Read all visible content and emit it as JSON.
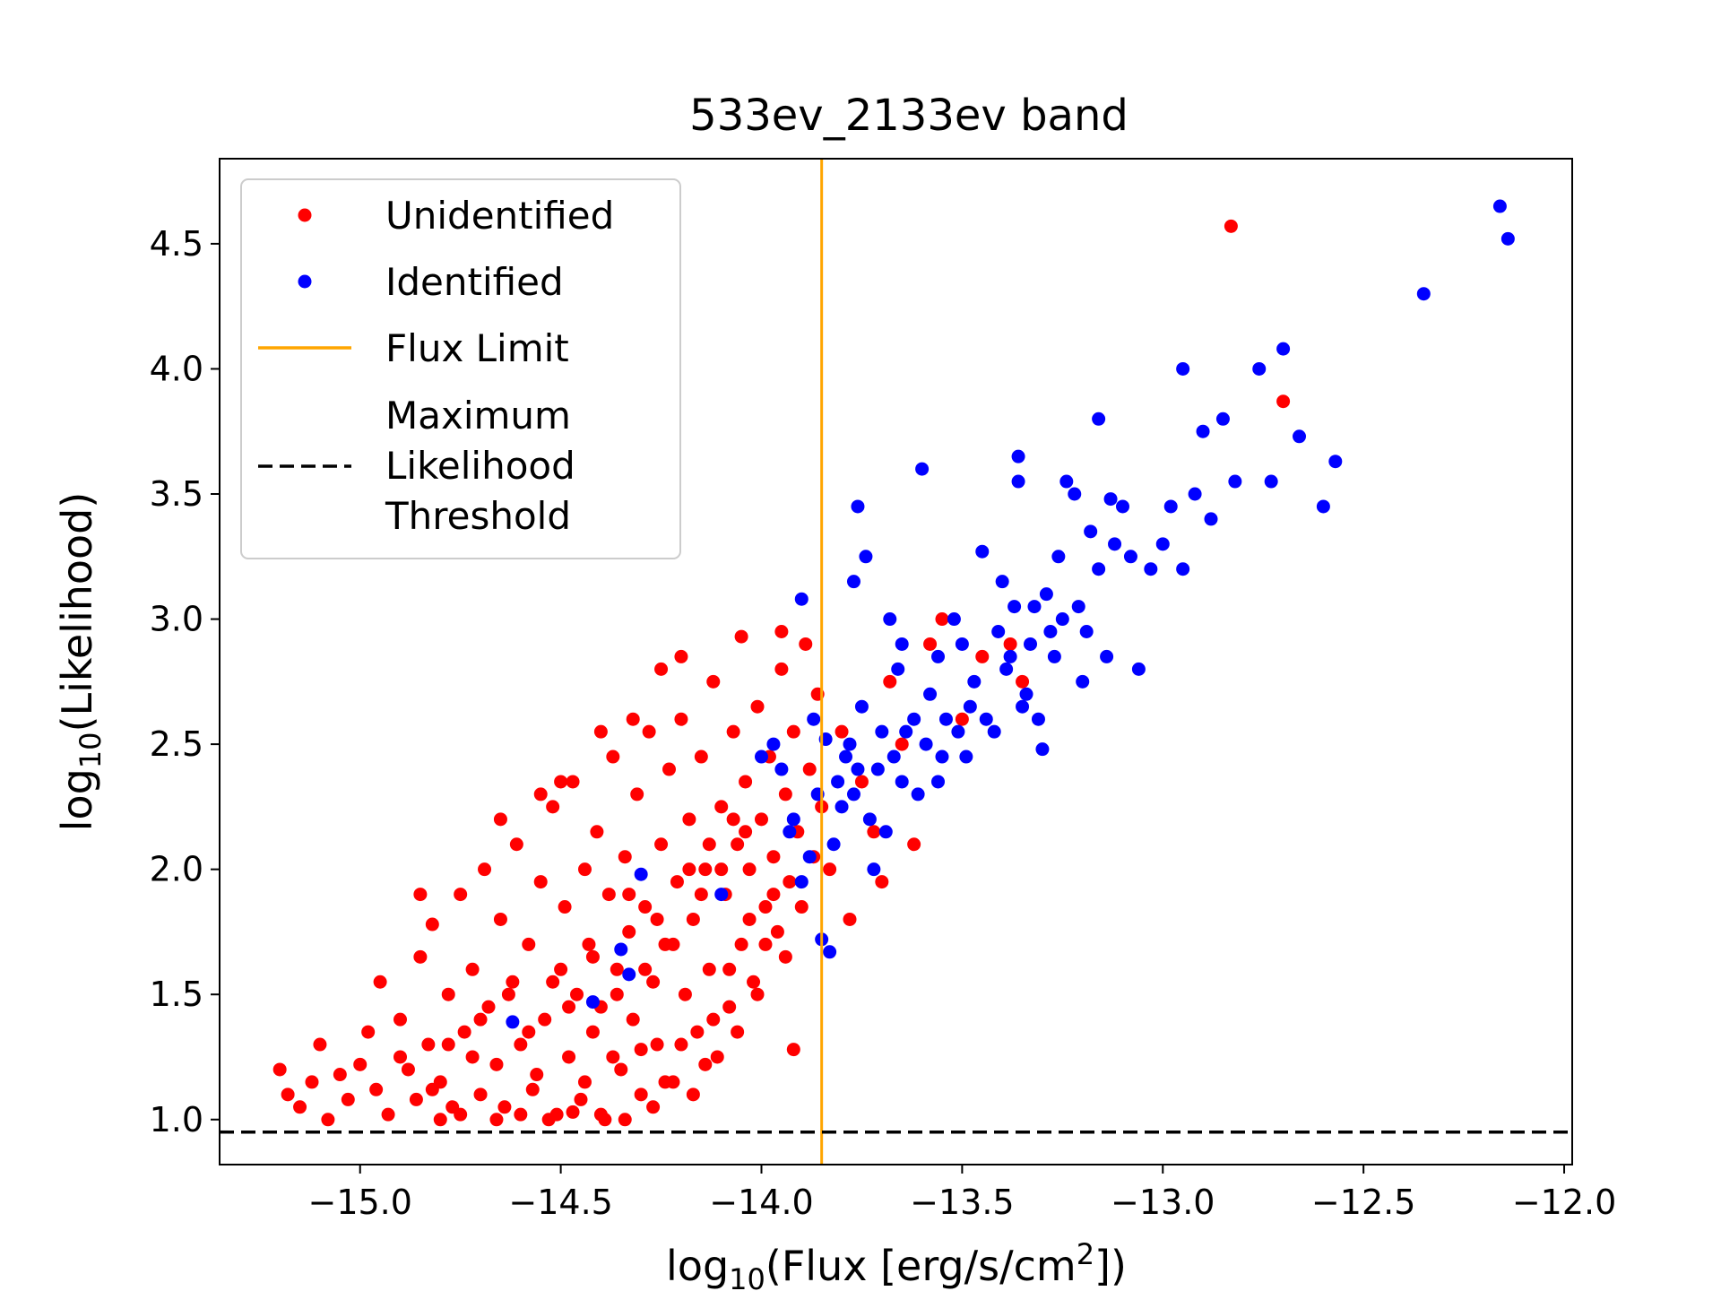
{
  "chart_data": {
    "type": "scatter",
    "title": "533ev_2133ev band",
    "xlabel": {
      "prefix": "log",
      "sub": "10",
      "main": "(Flux [erg/s/cm",
      "sup": "2",
      "suffix": "])"
    },
    "ylabel": {
      "prefix": "log",
      "sub": "10",
      "main": "(Likelihood)"
    },
    "xlim": [
      -15.35,
      -11.98
    ],
    "ylim": [
      0.82,
      4.84
    ],
    "xticks": [
      -15.0,
      -14.5,
      -14.0,
      -13.5,
      -13.0,
      -12.5,
      -12.0
    ],
    "xtick_labels": [
      "−15.0",
      "−14.5",
      "−14.0",
      "−13.5",
      "−13.0",
      "−12.5",
      "−12.0"
    ],
    "yticks": [
      1.0,
      1.5,
      2.0,
      2.5,
      3.0,
      3.5,
      4.0,
      4.5
    ],
    "ytick_labels": [
      "1.0",
      "1.5",
      "2.0",
      "2.5",
      "3.0",
      "3.5",
      "4.0",
      "4.5"
    ],
    "grid": false,
    "legend_position": "top-left",
    "flux_limit": -13.85,
    "likelihood_threshold": 0.95,
    "colors": {
      "unidentified": "#ff0000",
      "identified": "#0000ff",
      "flux_limit": "#ffa500",
      "threshold": "#000000"
    },
    "legend": [
      {
        "label": "Unidentified",
        "kind": "point",
        "color": "#ff0000"
      },
      {
        "label": "Identified",
        "kind": "point",
        "color": "#0000ff"
      },
      {
        "label": "Flux Limit",
        "kind": "line",
        "color": "#ffa500"
      },
      {
        "label": "Maximum\nLikelihood\nThreshold",
        "kind": "dashed",
        "color": "#000000"
      }
    ],
    "series": [
      {
        "name": "Unidentified",
        "color": "#ff0000",
        "points": [
          [
            -15.2,
            1.2
          ],
          [
            -15.18,
            1.1
          ],
          [
            -15.15,
            1.05
          ],
          [
            -15.12,
            1.15
          ],
          [
            -15.1,
            1.3
          ],
          [
            -15.08,
            1.0
          ],
          [
            -15.05,
            1.18
          ],
          [
            -15.03,
            1.08
          ],
          [
            -15.0,
            1.22
          ],
          [
            -14.98,
            1.35
          ],
          [
            -14.96,
            1.12
          ],
          [
            -14.95,
            1.55
          ],
          [
            -14.93,
            1.02
          ],
          [
            -14.9,
            1.4
          ],
          [
            -14.88,
            1.2
          ],
          [
            -14.86,
            1.08
          ],
          [
            -14.85,
            1.65
          ],
          [
            -14.83,
            1.3
          ],
          [
            -14.82,
            1.78
          ],
          [
            -14.8,
            1.15
          ],
          [
            -14.78,
            1.5
          ],
          [
            -14.77,
            1.05
          ],
          [
            -14.75,
            1.9
          ],
          [
            -14.74,
            1.35
          ],
          [
            -14.72,
            1.6
          ],
          [
            -14.7,
            1.1
          ],
          [
            -14.69,
            2.0
          ],
          [
            -14.68,
            1.45
          ],
          [
            -14.66,
            1.22
          ],
          [
            -14.65,
            1.8
          ],
          [
            -14.64,
            1.05
          ],
          [
            -14.62,
            1.55
          ],
          [
            -14.61,
            2.1
          ],
          [
            -14.6,
            1.3
          ],
          [
            -14.58,
            1.7
          ],
          [
            -14.57,
            1.12
          ],
          [
            -14.55,
            1.95
          ],
          [
            -14.54,
            1.4
          ],
          [
            -14.52,
            2.25
          ],
          [
            -14.51,
            1.02
          ],
          [
            -14.5,
            1.6
          ],
          [
            -14.49,
            1.85
          ],
          [
            -14.48,
            1.25
          ],
          [
            -14.47,
            2.35
          ],
          [
            -14.46,
            1.5
          ],
          [
            -14.45,
            1.08
          ],
          [
            -14.44,
            2.0
          ],
          [
            -14.43,
            1.7
          ],
          [
            -14.42,
            1.35
          ],
          [
            -14.41,
            2.15
          ],
          [
            -14.4,
            1.45
          ],
          [
            -14.39,
            1.0
          ],
          [
            -14.38,
            1.9
          ],
          [
            -14.37,
            2.45
          ],
          [
            -14.36,
            1.6
          ],
          [
            -14.35,
            1.2
          ],
          [
            -14.34,
            2.05
          ],
          [
            -14.33,
            1.75
          ],
          [
            -14.32,
            1.4
          ],
          [
            -14.31,
            2.3
          ],
          [
            -14.3,
            1.1
          ],
          [
            -14.29,
            1.85
          ],
          [
            -14.28,
            2.55
          ],
          [
            -14.27,
            1.55
          ],
          [
            -14.26,
            1.3
          ],
          [
            -14.25,
            2.1
          ],
          [
            -14.24,
            1.7
          ],
          [
            -14.23,
            2.4
          ],
          [
            -14.22,
            1.15
          ],
          [
            -14.21,
            1.95
          ],
          [
            -14.2,
            2.6
          ],
          [
            -14.19,
            1.5
          ],
          [
            -14.18,
            2.2
          ],
          [
            -14.17,
            1.8
          ],
          [
            -14.16,
            1.35
          ],
          [
            -14.15,
            2.45
          ],
          [
            -14.14,
            2.0
          ],
          [
            -14.13,
            1.6
          ],
          [
            -14.12,
            2.75
          ],
          [
            -14.11,
            1.25
          ],
          [
            -14.1,
            2.25
          ],
          [
            -14.09,
            1.9
          ],
          [
            -14.08,
            1.45
          ],
          [
            -14.07,
            2.55
          ],
          [
            -14.06,
            2.1
          ],
          [
            -14.05,
            1.7
          ],
          [
            -14.04,
            2.35
          ],
          [
            -14.03,
            2.0
          ],
          [
            -14.02,
            1.55
          ],
          [
            -14.01,
            2.65
          ],
          [
            -14.0,
            2.2
          ],
          [
            -13.99,
            1.85
          ],
          [
            -13.98,
            2.45
          ],
          [
            -13.97,
            2.05
          ],
          [
            -13.96,
            1.75
          ],
          [
            -13.95,
            2.8
          ],
          [
            -13.94,
            2.3
          ],
          [
            -13.93,
            1.95
          ],
          [
            -13.92,
            2.55
          ],
          [
            -13.91,
            2.15
          ],
          [
            -13.9,
            1.85
          ],
          [
            -13.89,
            2.9
          ],
          [
            -13.88,
            2.4
          ],
          [
            -13.87,
            2.05
          ],
          [
            -13.86,
            2.7
          ],
          [
            -13.85,
            2.25
          ],
          [
            -13.83,
            2.0
          ],
          [
            -13.8,
            2.55
          ],
          [
            -13.78,
            1.8
          ],
          [
            -13.75,
            2.35
          ],
          [
            -13.72,
            2.15
          ],
          [
            -13.7,
            1.95
          ],
          [
            -13.68,
            2.75
          ],
          [
            -13.65,
            2.5
          ],
          [
            -13.62,
            2.1
          ],
          [
            -13.58,
            2.9
          ],
          [
            -13.55,
            3.0
          ],
          [
            -13.5,
            2.6
          ],
          [
            -13.45,
            2.85
          ],
          [
            -13.38,
            2.9
          ],
          [
            -13.35,
            2.75
          ],
          [
            -14.2,
            2.85
          ],
          [
            -14.25,
            2.8
          ],
          [
            -14.32,
            2.6
          ],
          [
            -14.4,
            2.55
          ],
          [
            -14.5,
            2.35
          ],
          [
            -14.55,
            2.3
          ],
          [
            -14.65,
            2.2
          ],
          [
            -14.85,
            1.9
          ],
          [
            -13.95,
            2.95
          ],
          [
            -14.05,
            2.93
          ],
          [
            -13.92,
            1.28
          ],
          [
            -12.83,
            4.57
          ],
          [
            -12.7,
            3.87
          ],
          [
            -14.8,
            1.0
          ],
          [
            -14.75,
            1.02
          ],
          [
            -14.72,
            1.25
          ],
          [
            -14.66,
            1.0
          ],
          [
            -14.6,
            1.02
          ],
          [
            -14.56,
            1.18
          ],
          [
            -14.53,
            1.0
          ],
          [
            -14.47,
            1.03
          ],
          [
            -14.44,
            1.15
          ],
          [
            -14.4,
            1.02
          ],
          [
            -14.37,
            1.25
          ],
          [
            -14.34,
            1.0
          ],
          [
            -14.3,
            1.28
          ],
          [
            -14.27,
            1.05
          ],
          [
            -14.24,
            1.15
          ],
          [
            -14.2,
            1.3
          ],
          [
            -14.17,
            1.1
          ],
          [
            -14.14,
            1.22
          ],
          [
            -14.12,
            1.4
          ],
          [
            -14.08,
            1.6
          ],
          [
            -14.06,
            1.35
          ],
          [
            -14.03,
            1.8
          ],
          [
            -14.01,
            1.5
          ],
          [
            -13.99,
            1.7
          ],
          [
            -13.97,
            1.9
          ],
          [
            -13.94,
            1.65
          ],
          [
            -14.9,
            1.25
          ],
          [
            -14.82,
            1.12
          ],
          [
            -14.78,
            1.3
          ],
          [
            -14.7,
            1.4
          ],
          [
            -14.63,
            1.5
          ],
          [
            -14.58,
            1.35
          ],
          [
            -14.52,
            1.55
          ],
          [
            -14.48,
            1.45
          ],
          [
            -14.42,
            1.65
          ],
          [
            -14.36,
            1.5
          ],
          [
            -14.33,
            1.9
          ],
          [
            -14.29,
            1.6
          ],
          [
            -14.26,
            1.8
          ],
          [
            -14.22,
            1.7
          ],
          [
            -14.18,
            2.0
          ],
          [
            -14.15,
            1.9
          ],
          [
            -14.13,
            2.1
          ],
          [
            -14.1,
            2.0
          ],
          [
            -14.07,
            2.2
          ],
          [
            -14.04,
            2.15
          ]
        ]
      },
      {
        "name": "Identified",
        "color": "#0000ff",
        "points": [
          [
            -14.62,
            1.39
          ],
          [
            -14.42,
            1.47
          ],
          [
            -14.35,
            1.68
          ],
          [
            -14.33,
            1.58
          ],
          [
            -14.3,
            1.98
          ],
          [
            -14.1,
            1.9
          ],
          [
            -13.92,
            2.2
          ],
          [
            -13.9,
            1.95
          ],
          [
            -13.88,
            2.05
          ],
          [
            -13.86,
            2.3
          ],
          [
            -13.85,
            1.72
          ],
          [
            -13.83,
            1.67
          ],
          [
            -13.82,
            2.1
          ],
          [
            -13.8,
            2.25
          ],
          [
            -13.78,
            2.5
          ],
          [
            -13.76,
            2.4
          ],
          [
            -13.75,
            2.65
          ],
          [
            -13.74,
            3.25
          ],
          [
            -13.72,
            2.0
          ],
          [
            -13.7,
            2.55
          ],
          [
            -13.68,
            3.0
          ],
          [
            -13.66,
            2.8
          ],
          [
            -13.65,
            2.35
          ],
          [
            -13.62,
            2.6
          ],
          [
            -13.6,
            3.6
          ],
          [
            -13.58,
            2.7
          ],
          [
            -13.55,
            2.45
          ],
          [
            -13.52,
            3.0
          ],
          [
            -13.5,
            2.9
          ],
          [
            -13.48,
            2.65
          ],
          [
            -13.45,
            3.27
          ],
          [
            -13.42,
            2.55
          ],
          [
            -13.4,
            3.15
          ],
          [
            -13.38,
            2.85
          ],
          [
            -13.36,
            3.65
          ],
          [
            -13.34,
            2.7
          ],
          [
            -13.32,
            3.05
          ],
          [
            -13.3,
            2.48
          ],
          [
            -13.28,
            2.95
          ],
          [
            -13.26,
            3.25
          ],
          [
            -13.24,
            3.55
          ],
          [
            -13.22,
            3.5
          ],
          [
            -13.2,
            2.75
          ],
          [
            -13.18,
            3.35
          ],
          [
            -13.16,
            3.2
          ],
          [
            -13.14,
            2.85
          ],
          [
            -13.12,
            3.3
          ],
          [
            -13.1,
            3.45
          ],
          [
            -13.08,
            3.25
          ],
          [
            -13.06,
            2.8
          ],
          [
            -13.03,
            3.2
          ],
          [
            -13.0,
            3.3
          ],
          [
            -12.98,
            3.45
          ],
          [
            -12.95,
            3.2
          ],
          [
            -12.92,
            3.5
          ],
          [
            -12.9,
            3.75
          ],
          [
            -12.88,
            3.4
          ],
          [
            -12.85,
            3.8
          ],
          [
            -12.82,
            3.55
          ],
          [
            -12.76,
            4.0
          ],
          [
            -12.73,
            3.55
          ],
          [
            -12.7,
            4.08
          ],
          [
            -12.66,
            3.73
          ],
          [
            -12.6,
            3.45
          ],
          [
            -12.57,
            3.63
          ],
          [
            -12.95,
            4.0
          ],
          [
            -13.16,
            3.8
          ],
          [
            -13.13,
            3.48
          ],
          [
            -13.36,
            3.55
          ],
          [
            -12.35,
            4.3
          ],
          [
            -12.16,
            4.65
          ],
          [
            -12.14,
            4.52
          ],
          [
            -13.9,
            3.08
          ],
          [
            -13.93,
            2.15
          ],
          [
            -13.97,
            2.5
          ],
          [
            -14.0,
            2.45
          ],
          [
            -13.95,
            2.4
          ],
          [
            -13.87,
            2.6
          ],
          [
            -13.84,
            2.52
          ],
          [
            -13.81,
            2.35
          ],
          [
            -13.79,
            2.45
          ],
          [
            -13.77,
            2.3
          ],
          [
            -13.73,
            2.2
          ],
          [
            -13.71,
            2.4
          ],
          [
            -13.69,
            2.15
          ],
          [
            -13.67,
            2.45
          ],
          [
            -13.64,
            2.55
          ],
          [
            -13.61,
            2.3
          ],
          [
            -13.59,
            2.5
          ],
          [
            -13.56,
            2.35
          ],
          [
            -13.54,
            2.6
          ],
          [
            -13.51,
            2.55
          ],
          [
            -13.49,
            2.45
          ],
          [
            -13.47,
            2.75
          ],
          [
            -13.44,
            2.6
          ],
          [
            -13.41,
            2.95
          ],
          [
            -13.39,
            2.8
          ],
          [
            -13.37,
            3.05
          ],
          [
            -13.35,
            2.65
          ],
          [
            -13.33,
            2.9
          ],
          [
            -13.31,
            2.6
          ],
          [
            -13.29,
            3.1
          ],
          [
            -13.27,
            2.85
          ],
          [
            -13.25,
            3.0
          ],
          [
            -13.21,
            3.05
          ],
          [
            -13.19,
            2.95
          ],
          [
            -13.77,
            3.15
          ],
          [
            -13.76,
            3.45
          ],
          [
            -13.65,
            2.9
          ],
          [
            -13.56,
            2.85
          ]
        ]
      }
    ]
  }
}
